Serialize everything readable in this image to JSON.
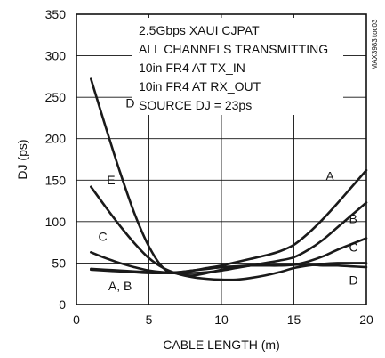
{
  "chart_data": {
    "type": "line",
    "title": "",
    "xlabel": "CABLE LENGTH (m)",
    "ylabel": "DJ (ps)",
    "xlim": [
      0,
      20
    ],
    "ylim": [
      0,
      350
    ],
    "x_ticks": [
      "0",
      "5",
      "10",
      "15",
      "20"
    ],
    "y_ticks": [
      "0",
      "50",
      "100",
      "150",
      "200",
      "250",
      "300",
      "350"
    ],
    "grid": true,
    "annotations": [
      "2.5Gbps XAUI CJPAT",
      "ALL CHANNELS TRANSMITTING",
      "10in FR4 AT TX_IN",
      "10in FR4 AT RX_OUT",
      "SOURCE DJ = 23ps"
    ],
    "part_number": "MAX3983 toc03",
    "series": [
      {
        "name": "A",
        "x": [
          1,
          2,
          3,
          4,
          5,
          6,
          7,
          8,
          9,
          10,
          11,
          12,
          13,
          14,
          15,
          16,
          17,
          18,
          19,
          20
        ],
        "y": [
          42,
          41,
          40,
          39,
          38,
          38,
          39,
          41,
          44,
          47,
          51,
          55,
          59,
          64,
          72,
          86,
          103,
          122,
          142,
          162
        ]
      },
      {
        "name": "B",
        "x": [
          1,
          2,
          3,
          4,
          5,
          6,
          7,
          8,
          9,
          10,
          11,
          12,
          13,
          14,
          15,
          16,
          17,
          18,
          19,
          20
        ],
        "y": [
          43,
          42,
          41,
          40,
          39,
          38,
          38,
          38,
          39,
          41,
          44,
          47,
          50,
          53,
          57,
          66,
          78,
          93,
          108,
          123
        ]
      },
      {
        "name": "C",
        "x": [
          1,
          2,
          3,
          4,
          5,
          6,
          7,
          8,
          9,
          10,
          11,
          12,
          13,
          14,
          15,
          16,
          17,
          18,
          19,
          20
        ],
        "y": [
          63,
          56,
          50,
          45,
          41,
          39,
          39,
          41,
          43,
          45,
          46,
          47,
          47,
          47,
          48,
          52,
          58,
          66,
          73,
          80
        ]
      },
      {
        "name": "D",
        "x": [
          1,
          2,
          3,
          4,
          5,
          6,
          7,
          8,
          9,
          10,
          11,
          12,
          13,
          14,
          15,
          16,
          17,
          18,
          19,
          20
        ],
        "y": [
          272,
          215,
          160,
          110,
          70,
          44,
          37,
          35,
          38,
          42,
          45,
          47,
          48,
          48,
          48,
          48,
          47,
          47,
          46,
          45
        ]
      },
      {
        "name": "E",
        "x": [
          1,
          2,
          3,
          4,
          5,
          6,
          7,
          8,
          9,
          10,
          11,
          12,
          13,
          14,
          15,
          16,
          17,
          18,
          19,
          20
        ],
        "y": [
          142,
          118,
          95,
          74,
          56,
          44,
          37,
          33,
          31,
          30,
          30,
          32,
          35,
          39,
          44,
          47,
          49,
          50,
          50,
          50
        ]
      }
    ],
    "curve_labels": [
      {
        "text": "D",
        "x": 3.4,
        "y": 238
      },
      {
        "text": "E",
        "x": 2.1,
        "y": 145
      },
      {
        "text": "C",
        "x": 1.5,
        "y": 77
      },
      {
        "text": "A, B",
        "x": 2.2,
        "y": 17
      },
      {
        "text": "A",
        "x": 17.2,
        "y": 150
      },
      {
        "text": "B",
        "x": 18.8,
        "y": 98
      },
      {
        "text": "C",
        "x": 18.8,
        "y": 64
      },
      {
        "text": "D",
        "x": 18.8,
        "y": 24
      }
    ]
  }
}
